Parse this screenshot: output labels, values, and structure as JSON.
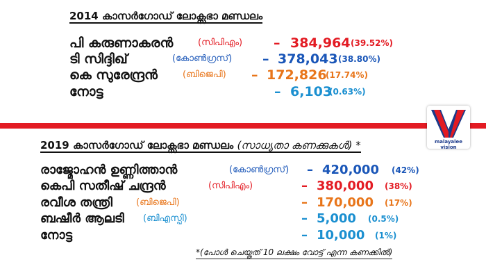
{
  "election_2014": {
    "heading": "2014 കാസർഗോഡ് ലോക്സഭാ മണ്ഡലം",
    "results": [
      {
        "name": "പി കരുണാകരൻ",
        "party": "(സിപിഎം)",
        "dash": "–",
        "votes": "384,964",
        "percent": "(39.52%)",
        "color": "#e31b23"
      },
      {
        "name": "ടി സിദ്ദിഖ്",
        "party": "(കോൺഗ്രസ്)",
        "dash": "–",
        "votes": "378,043",
        "percent": "(38.80%)",
        "color": "#1a56b8"
      },
      {
        "name": "കെ സുരേന്ദ്രൻ",
        "party": "(ബിജെപി)",
        "dash": "–",
        "votes": "172,826",
        "percent": "(17.74%)",
        "color": "#e8751a"
      },
      {
        "name": "നോട്ട",
        "party": "",
        "dash": "–",
        "votes": "6,103",
        "percent": "(0.63%)",
        "color": "#1a8fd0"
      }
    ]
  },
  "election_2019": {
    "heading": "2019 കാസർഗോഡ് ലോക്സഭാ മണ്ഡലം",
    "heading_note": "(സാധ്യതാ കണക്കുകൾ) *",
    "results": [
      {
        "name": "രാജ്മോഹൻ ഉണ്ണിത്താൻ",
        "party": "(കോൺഗ്രസ്)",
        "dash": "–",
        "votes": "420,000",
        "percent": "(42%)",
        "color": "#1a56b8"
      },
      {
        "name": "കെപി സതീഷ് ചന്ദ്രൻ",
        "party": "(സിപിഎം)",
        "dash": "–",
        "votes": "380,000",
        "percent": "(38%)",
        "color": "#e31b23"
      },
      {
        "name": "രവീശ തന്ത്രി",
        "party": "(ബിജെപി)",
        "dash": "–",
        "votes": "170,000",
        "percent": "(17%)",
        "color": "#e8751a"
      },
      {
        "name": "ബഷീർ ആലടി",
        "party": "(ബിഎസ്പി)",
        "dash": "–",
        "votes": "5,000",
        "percent": "(0.5%)",
        "color": "#1a8fd0"
      },
      {
        "name": "നോട്ട",
        "party": "",
        "dash": "–",
        "votes": "10,000",
        "percent": "(1%)",
        "color": "#1a8fd0"
      }
    ],
    "footnote": "*(പോൾ ചെയ്തത് 10 ലക്ഷം വോട്ട് എന്ന കണക്കിൽ)"
  },
  "logo": {
    "icon": "v-logo-icon",
    "text": "malayalee vision",
    "colors": {
      "red": "#e31b23",
      "blue": "#1b3a8a"
    }
  }
}
